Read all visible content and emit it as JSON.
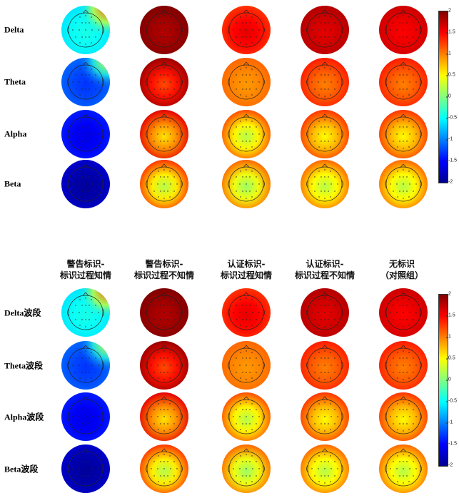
{
  "panel_top": {
    "row_labels": [
      "Delta",
      "Theta",
      "Alpha",
      "Beta"
    ]
  },
  "panel_bottom": {
    "column_headers": [
      [
        "警告标识-",
        "标识过程知情"
      ],
      [
        "警告标识-",
        "标识过程不知情"
      ],
      [
        "认证标识-",
        "标识过程知情"
      ],
      [
        "认证标识-",
        "标识过程不知情"
      ],
      [
        "无标识",
        "（对照组）"
      ]
    ],
    "row_labels": [
      "Delta波段",
      "Theta波段",
      "Alpha波段",
      "Beta波段"
    ]
  },
  "colorbar": {
    "ticks": [
      "2",
      "1.5",
      "1",
      "0.5",
      "0",
      "-0.5",
      "-1",
      "-1.5",
      "-2"
    ],
    "range": [
      -2,
      2
    ]
  },
  "topomaps": [
    [
      {
        "edge": -0.6,
        "center": -0.4,
        "hot": 1.2
      },
      {
        "edge": 2.0,
        "center": 1.8
      },
      {
        "edge": 1.3,
        "center": 1.6
      },
      {
        "edge": 1.8,
        "center": 1.6
      },
      {
        "edge": 1.7,
        "center": 1.5
      }
    ],
    [
      {
        "edge": -1.1,
        "center": -1.3,
        "hot": 0.4
      },
      {
        "edge": 1.9,
        "center": 1.2
      },
      {
        "edge": 1.1,
        "center": 0.9
      },
      {
        "edge": 1.4,
        "center": 1.0
      },
      {
        "edge": 1.4,
        "center": 1.0
      }
    ],
    [
      {
        "edge": -1.4,
        "center": -1.6
      },
      {
        "edge": 1.6,
        "center": 0.6
      },
      {
        "edge": 1.2,
        "center": 0.2
      },
      {
        "edge": 1.3,
        "center": 0.5
      },
      {
        "edge": 1.3,
        "center": 0.5
      }
    ],
    [
      {
        "edge": -1.7,
        "center": -1.9
      },
      {
        "edge": 1.3,
        "center": 0.2
      },
      {
        "edge": 1.1,
        "center": 0.1
      },
      {
        "edge": 1.1,
        "center": 0.2
      },
      {
        "edge": 1.1,
        "center": 0.2
      }
    ]
  ]
}
